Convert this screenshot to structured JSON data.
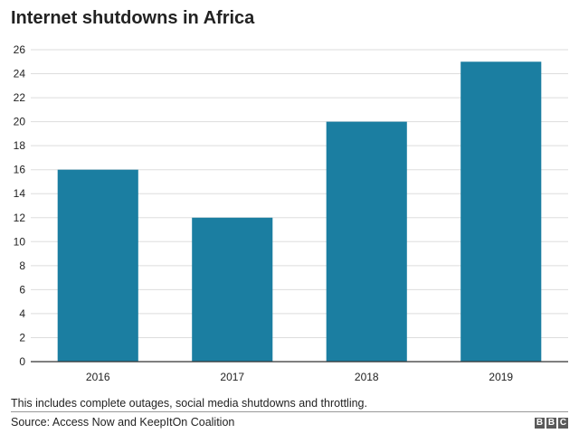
{
  "chart_data": {
    "type": "bar",
    "title": "Internet shutdowns in Africa",
    "categories": [
      "2016",
      "2017",
      "2018",
      "2019"
    ],
    "values": [
      16,
      12,
      20,
      25
    ],
    "yticks": [
      0,
      2,
      4,
      6,
      8,
      10,
      12,
      14,
      16,
      18,
      20,
      22,
      24,
      26
    ],
    "ylim": [
      0,
      26
    ],
    "grid": true,
    "bar_color": "#1b7ea1",
    "grid_color": "#dddddd"
  },
  "note": "This includes complete outages, social media shutdowns and throttling.",
  "source": "Source: Access Now and KeepItOn Coalition",
  "logo": [
    "B",
    "B",
    "C"
  ]
}
